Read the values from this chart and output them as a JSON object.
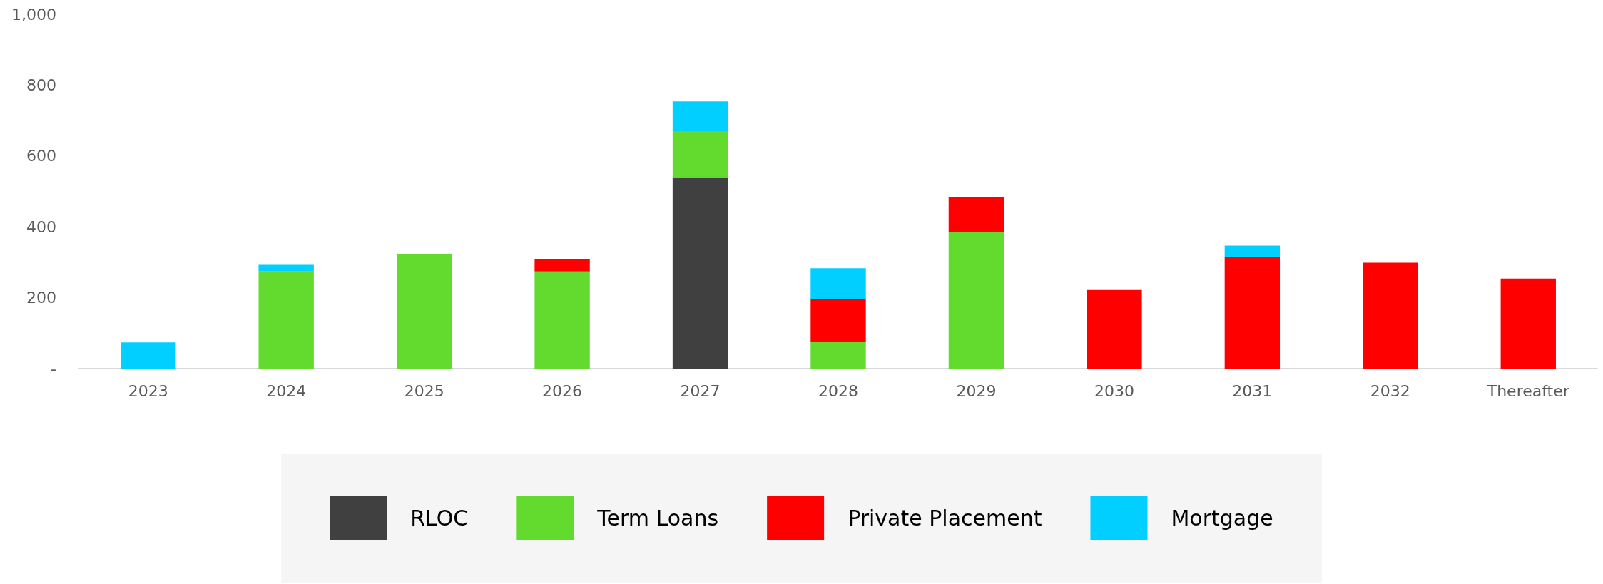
{
  "chart_data": {
    "type": "bar",
    "stacked": true,
    "legend": "bottom",
    "categories": [
      "2023",
      "2024",
      "2025",
      "2026",
      "2027",
      "2028",
      "2029",
      "2030",
      "2031",
      "2032",
      "Thereafter"
    ],
    "series": [
      {
        "name": "RLOC",
        "color": "#404040",
        "values": [
          null,
          null,
          null,
          null,
          540,
          null,
          null,
          null,
          null,
          null,
          null
        ]
      },
      {
        "name": "Term Loans",
        "color": "#63db2e",
        "values": [
          null,
          274,
          324,
          274,
          130,
          75,
          385,
          null,
          null,
          null,
          null
        ]
      },
      {
        "name": "Private Placement",
        "color": "#ff0000",
        "values": [
          null,
          null,
          null,
          36,
          null,
          120,
          100,
          224,
          316,
          299,
          254
        ]
      },
      {
        "name": "Mortgage",
        "color": "#00cfff",
        "values": [
          74,
          21,
          null,
          null,
          84,
          88,
          null,
          null,
          31,
          null,
          null
        ]
      }
    ],
    "ylim": [
      0,
      1000
    ],
    "yticks": [
      {
        "value": 0,
        "label": "-"
      },
      200,
      400,
      600,
      800,
      {
        "value": 1000,
        "label": "1,000"
      }
    ]
  }
}
